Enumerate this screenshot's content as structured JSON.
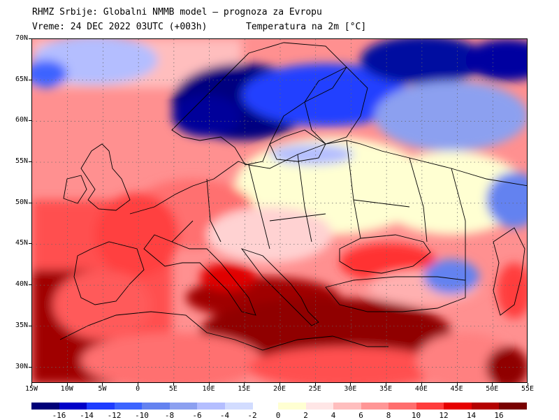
{
  "header": {
    "line1": "RHMZ Srbije: Globalni NMMB model – prognoza za Evropu",
    "line2": "Vreme: 24 DEC 2022 03UTC (+003h)",
    "line3": "Temperatura na 2m [°C]"
  },
  "map": {
    "lon_range": [
      -15,
      55
    ],
    "lat_range": [
      28,
      70
    ],
    "lat_ticks": [
      "30N",
      "35N",
      "40N",
      "45N",
      "50N",
      "55N",
      "60N",
      "65N",
      "70N"
    ],
    "lat_values": [
      30,
      35,
      40,
      45,
      50,
      55,
      60,
      65,
      70
    ],
    "lon_ticks": [
      "15W",
      "10W",
      "5W",
      "0",
      "5E",
      "10E",
      "15E",
      "20E",
      "25E",
      "30E",
      "35E",
      "40E",
      "45E",
      "50E",
      "55E"
    ],
    "lon_values": [
      -15,
      -10,
      -5,
      0,
      5,
      10,
      15,
      20,
      25,
      30,
      35,
      40,
      45,
      50,
      55
    ],
    "grid": true
  },
  "colorbar": {
    "negative_labels": [
      "-16",
      "-14",
      "-12",
      "-10",
      "-8",
      "-6",
      "-4",
      "-2"
    ],
    "positive_labels": [
      "0",
      "2",
      "4",
      "6",
      "8",
      "10",
      "12",
      "14",
      "16"
    ],
    "negative_colors": [
      "#000078",
      "#0000c8",
      "#1e3cff",
      "#3c64ff",
      "#6482f0",
      "#8ca0f0",
      "#b4beff",
      "#d2dcff"
    ],
    "positive_colors": [
      "#ffffd2",
      "#ffe6e6",
      "#ffbebe",
      "#ff9696",
      "#ff6e6e",
      "#ff3c3c",
      "#e60000",
      "#b40000",
      "#780000"
    ]
  }
}
